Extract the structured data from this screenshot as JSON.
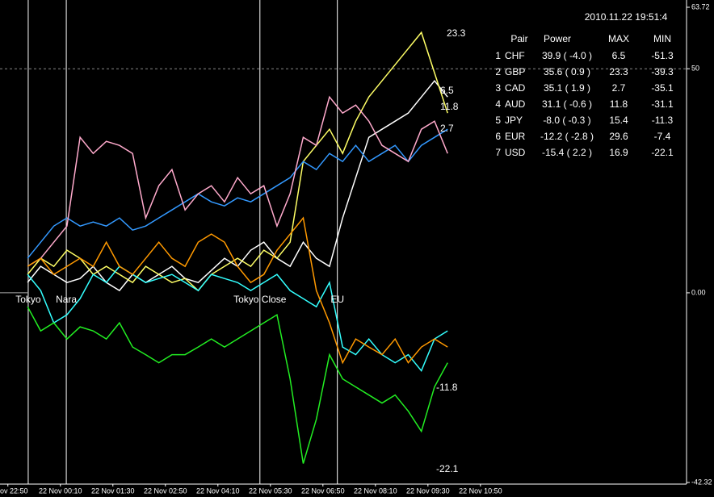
{
  "chart_data": {
    "type": "line",
    "x": [
      30,
      50,
      70,
      90,
      110,
      130,
      150,
      170,
      190,
      210,
      230,
      250,
      270,
      290,
      310,
      330,
      350,
      370,
      390,
      410,
      430,
      450,
      470,
      490,
      510,
      530,
      550,
      570,
      590,
      610,
      630,
      650,
      670
    ],
    "xlim": [
      -12,
      1034
    ],
    "xticks": [
      {
        "value": 0,
        "label": "ov 22:50"
      },
      {
        "value": 80,
        "label": "22 Nov 00:10"
      },
      {
        "value": 160,
        "label": "22 Nov 01:30"
      },
      {
        "value": 240,
        "label": "22 Nov 02:50"
      },
      {
        "value": 320,
        "label": "22 Nov 04:10"
      },
      {
        "value": 400,
        "label": "22 Nov 05:30"
      },
      {
        "value": 480,
        "label": "22 Nov 06:50"
      },
      {
        "value": 560,
        "label": "22 Nov 08:10"
      },
      {
        "value": 640,
        "label": "22 Nov 09:30"
      },
      {
        "value": 720,
        "label": "22 Nov 10:50"
      }
    ],
    "ylim": [
      -42.32,
      63.72
    ],
    "yticks": [
      {
        "value": 63.72,
        "label": "63.72"
      },
      50,
      {
        "value": 0,
        "label": "0.00"
      },
      {
        "value": -42.32,
        "label": "-42.32"
      }
    ],
    "dashed_level": 50,
    "sessions": [
      {
        "label": "Tokyo",
        "x": 31,
        "color": "#ffffff"
      },
      {
        "label": "Nara",
        "x": 89,
        "color": "#888888"
      },
      {
        "label": "Tokyo Close",
        "x": 384,
        "color": "#ffffff"
      },
      {
        "label": "EU",
        "x": 502,
        "color": "#ffffff"
      }
    ],
    "series": [
      {
        "name": "CHF",
        "color": "#ffffff",
        "values": [
          2.3,
          5.9,
          4.1,
          2.3,
          3.2,
          5.9,
          2.3,
          0.5,
          4.1,
          2.3,
          4.1,
          5.9,
          3.2,
          2.3,
          5.0,
          7.7,
          5.9,
          9.5,
          11.3,
          7.7,
          5.9,
          11.3,
          7.7,
          5.9,
          16.7,
          25.7,
          34.7,
          36.5,
          38.3,
          40.1,
          43.7,
          47.3,
          43.7
        ]
      },
      {
        "name": "GBP",
        "color": "#ffff66",
        "values": [
          4.1,
          7.7,
          5.9,
          9.5,
          7.7,
          4.1,
          5.9,
          4.1,
          2.3,
          5.9,
          4.1,
          2.3,
          3.2,
          0.5,
          4.1,
          5.9,
          7.7,
          5.9,
          9.5,
          7.7,
          11.3,
          29.3,
          32.9,
          36.5,
          31.1,
          38.3,
          43.7,
          47.3,
          50.9,
          54.5,
          58.1,
          49.1,
          40.1
        ]
      },
      {
        "name": "CAD",
        "color": "#3399ff",
        "values": [
          7.7,
          11.3,
          14.9,
          16.7,
          14.9,
          15.8,
          14.9,
          16.7,
          14.0,
          14.9,
          16.7,
          18.5,
          20.3,
          22.1,
          20.3,
          19.4,
          21.2,
          20.3,
          22.1,
          23.9,
          25.7,
          29.3,
          27.5,
          31.1,
          29.3,
          32.9,
          29.3,
          31.1,
          32.9,
          29.3,
          32.9,
          34.7,
          36.5
        ]
      },
      {
        "name": "AUD",
        "color": "#ffaacc",
        "values": [
          5.9,
          7.7,
          11.3,
          14.9,
          34.7,
          31.1,
          33.8,
          32.9,
          31.1,
          16.7,
          23.9,
          27.5,
          18.5,
          22.1,
          23.9,
          20.3,
          25.7,
          22.1,
          23.9,
          14.9,
          22.1,
          34.7,
          32.9,
          43.7,
          40.1,
          41.9,
          38.3,
          32.9,
          31.1,
          29.3,
          36.5,
          38.3,
          31.1
        ]
      },
      {
        "name": "JPY",
        "color": "#33ffff",
        "values": [
          4.1,
          0.5,
          -6.7,
          -4.9,
          -1.3,
          4.1,
          2.3,
          5.9,
          4.1,
          2.3,
          3.2,
          4.1,
          2.3,
          0.5,
          4.1,
          3.2,
          2.3,
          0.5,
          2.3,
          4.1,
          0.5,
          -1.3,
          -3.1,
          2.3,
          -12.1,
          -13.8,
          -10.3,
          -13.8,
          -15.6,
          -13.8,
          -17.4,
          -10.3,
          -8.5
        ]
      },
      {
        "name": "EUR",
        "color": "#ff9900",
        "values": [
          5.9,
          7.7,
          4.1,
          5.9,
          7.7,
          5.9,
          11.3,
          5.9,
          4.1,
          7.7,
          11.3,
          7.7,
          5.9,
          11.3,
          13.1,
          11.3,
          5.9,
          2.3,
          4.1,
          9.5,
          13.1,
          16.7,
          0.5,
          -6.7,
          -15.6,
          -10.3,
          -12.1,
          -13.8,
          -10.3,
          -15.6,
          -12.1,
          -10.3,
          -12.1
        ]
      },
      {
        "name": "USD",
        "color": "#22ee22",
        "values": [
          -3.1,
          -8.5,
          -6.7,
          -10.3,
          -7.6,
          -8.5,
          -10.3,
          -6.7,
          -12.1,
          -13.8,
          -15.6,
          -13.8,
          -13.8,
          -12.1,
          -10.3,
          -12.1,
          -10.3,
          -8.5,
          -6.7,
          -4.9,
          -19.2,
          -38.1,
          -28.2,
          -13.8,
          -19.2,
          -21.0,
          -22.8,
          -24.6,
          -22.8,
          -26.4,
          -30.9,
          -21.0,
          -15.6
        ]
      }
    ],
    "annotations": [
      {
        "text": "23.3",
        "color": "#ffff66"
      },
      {
        "text": "6.5",
        "color": "#ffffff"
      },
      {
        "text": "11.8",
        "color": "#ffaacc"
      },
      {
        "text": "2.7",
        "color": "#3399ff"
      },
      {
        "text": "-11.8",
        "color": "#ffff66"
      },
      {
        "text": "-22.1",
        "color": "#22ee22"
      }
    ],
    "table": {
      "timestamp": "2010.11.22 19:51:4",
      "highlight_color": "#ffff00",
      "headers": [
        "Pair",
        "Power",
        "MAX",
        "MIN"
      ],
      "rows": [
        {
          "rank": "1",
          "pair": "CHF",
          "power": "39.9 ( -4.0 )",
          "max": "6.5",
          "min": "-51.3",
          "highlight": "max"
        },
        {
          "rank": "2",
          "pair": "GBP",
          "power": "35.6 ( 0.9 )",
          "max": "23.3",
          "min": "-39.3"
        },
        {
          "rank": "3",
          "pair": "CAD",
          "power": "35.1 ( 1.9 )",
          "max": "2.7",
          "min": "-35.1",
          "highlight": "max"
        },
        {
          "rank": "4",
          "pair": "AUD",
          "power": "31.1 ( -0.6 )",
          "max": "11.8",
          "min": "-31.1"
        },
        {
          "rank": "5",
          "pair": "JPY",
          "power": "-8.0 ( -0.3 )",
          "max": "15.4",
          "min": "-11.3"
        },
        {
          "rank": "6",
          "pair": "EUR",
          "power": "-12.2 ( -2.8 )",
          "max": "29.6",
          "min": "-7.4",
          "highlight": "min"
        },
        {
          "rank": "7",
          "pair": "USD",
          "power": "-15.4 ( 2.2 )",
          "max": "16.9",
          "min": "-22.1"
        }
      ]
    }
  }
}
